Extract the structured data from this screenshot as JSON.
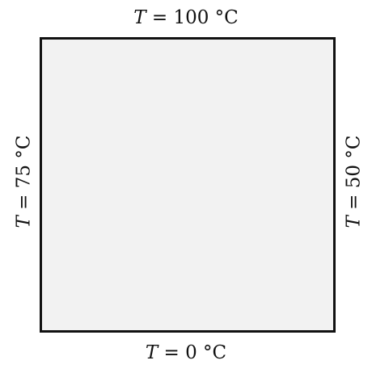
{
  "variable": "T",
  "equals": "=",
  "boundaries": {
    "top": {
      "value": "100 °C"
    },
    "bottom": {
      "value": "0 °C"
    },
    "left": {
      "value": "75 °C"
    },
    "right": {
      "value": "50 °C"
    }
  },
  "colors": {
    "plate_fill": "#f2f2f2",
    "border": "#111111"
  }
}
